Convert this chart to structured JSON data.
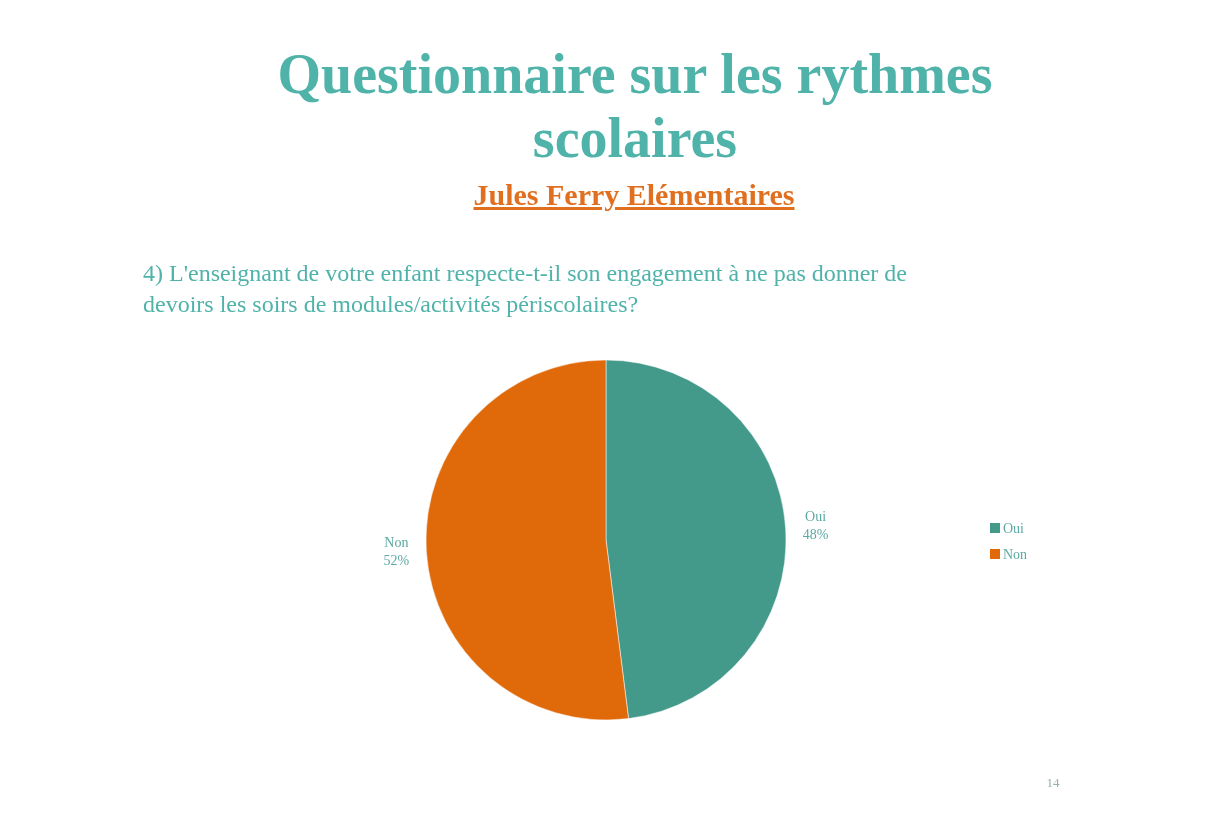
{
  "chart_data": {
    "type": "pie",
    "title": "Questionnaire sur les rythmes scolaires",
    "subtitle": "Jules Ferry Elémentaires",
    "annotations": [
      "4) L'enseignant de votre enfant respecte-t-il son engagement à ne pas donner de devoirs les soirs de modules/activités périscolaires?",
      "14"
    ],
    "categories": [
      "Oui",
      "Non"
    ],
    "values": [
      48,
      52
    ],
    "colors": [
      "#439a8b",
      "#e06a0a"
    ],
    "value_labels": [
      "48%",
      "52%"
    ],
    "legend": "right"
  }
}
